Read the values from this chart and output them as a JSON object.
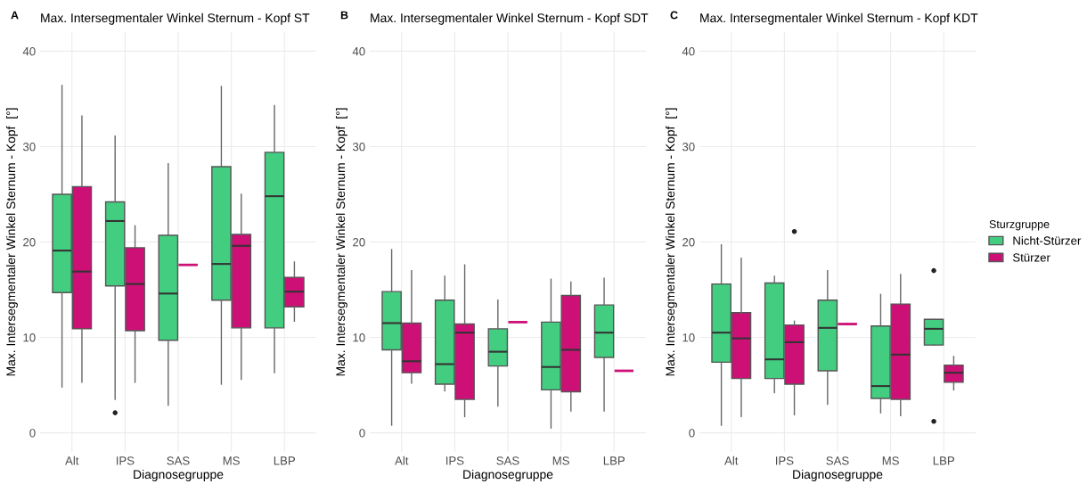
{
  "chart_data": [
    {
      "type": "box",
      "title": "Max. Intersegmentaler Winkel Sternum - Kopf ST",
      "annotations": [
        "A"
      ],
      "xlabel": "Diagnosegruppe",
      "ylabel": "Max. Intersegmentaler Winkel Sternum - Kopf  [°]",
      "categories": [
        "Alt",
        "IPS",
        "SAS",
        "MS",
        "LBP"
      ],
      "ylim": [
        -2,
        42
      ],
      "yticks": [
        0,
        10,
        20,
        30,
        40
      ],
      "grid": true,
      "legend": false,
      "series": [
        {
          "color": "#43cd80",
          "boxes": [
            {
              "low": 4.8,
              "q1": 14.7,
              "median": 19.1,
              "q3": 25.0,
              "high": 36.4
            },
            {
              "low": 3.5,
              "q1": 15.4,
              "median": 22.2,
              "q3": 24.2,
              "high": 31.1,
              "outliers": [
                2.1
              ]
            },
            {
              "low": 2.9,
              "q1": 9.7,
              "median": 14.6,
              "q3": 20.7,
              "high": 28.2
            },
            {
              "low": 5.1,
              "q1": 13.9,
              "median": 17.7,
              "q3": 27.9,
              "high": 36.3
            },
            {
              "low": 6.3,
              "q1": 11.0,
              "median": 24.8,
              "q3": 29.4,
              "high": 34.3
            }
          ]
        },
        {
          "color": "#cd1076",
          "boxes": [
            {
              "low": 5.3,
              "q1": 10.9,
              "median": 16.9,
              "q3": 25.8,
              "high": 33.2
            },
            {
              "low": 5.3,
              "q1": 10.7,
              "median": 15.6,
              "q3": 19.4,
              "high": 21.7
            },
            {
              "low": 17.6,
              "q1": 17.6,
              "median": 17.6,
              "q3": 17.6,
              "high": 17.6
            },
            {
              "low": 5.6,
              "q1": 11.0,
              "median": 19.6,
              "q3": 20.8,
              "high": 25.0
            },
            {
              "low": 11.7,
              "q1": 13.2,
              "median": 14.8,
              "q3": 16.3,
              "high": 17.9
            }
          ]
        }
      ]
    },
    {
      "type": "box",
      "title": "Max. Intersegmentaler Winkel Sternum - Kopf SDT",
      "annotations": [
        "B"
      ],
      "xlabel": "Diagnosegruppe",
      "ylabel": "Max. Intersegmentaler Winkel Sternum - Kopf  [°]",
      "categories": [
        "Alt",
        "IPS",
        "SAS",
        "MS",
        "LBP"
      ],
      "ylim": [
        -2,
        42
      ],
      "yticks": [
        0,
        10,
        20,
        30,
        40
      ],
      "grid": true,
      "legend": false,
      "series": [
        {
          "color": "#43cd80",
          "boxes": [
            {
              "low": 0.8,
              "q1": 8.7,
              "median": 11.5,
              "q3": 14.8,
              "high": 19.2
            },
            {
              "low": 4.4,
              "q1": 5.1,
              "median": 7.2,
              "q3": 13.9,
              "high": 16.4
            },
            {
              "low": 2.8,
              "q1": 7.0,
              "median": 8.5,
              "q3": 10.9,
              "high": 13.9
            },
            {
              "low": 0.5,
              "q1": 4.5,
              "median": 6.9,
              "q3": 11.6,
              "high": 16.1
            },
            {
              "low": 2.3,
              "q1": 7.9,
              "median": 10.5,
              "q3": 13.4,
              "high": 16.2
            }
          ]
        },
        {
          "color": "#cd1076",
          "boxes": [
            {
              "low": 5.2,
              "q1": 6.3,
              "median": 7.5,
              "q3": 11.5,
              "high": 17.0
            },
            {
              "low": 1.7,
              "q1": 3.5,
              "median": 10.5,
              "q3": 11.4,
              "high": 17.6
            },
            {
              "low": 11.6,
              "q1": 11.6,
              "median": 11.6,
              "q3": 11.6,
              "high": 11.6
            },
            {
              "low": 2.3,
              "q1": 4.3,
              "median": 8.7,
              "q3": 14.4,
              "high": 15.8
            },
            {
              "low": 6.5,
              "q1": 6.5,
              "median": 6.5,
              "q3": 6.5,
              "high": 6.5
            }
          ]
        }
      ]
    },
    {
      "type": "box",
      "title": "Max. Intersegmentaler Winkel Sternum - Kopf KDT",
      "annotations": [
        "C"
      ],
      "xlabel": "Diagnosegruppe",
      "ylabel": "Max. Intersegmentaler Winkel Sternum - Kopf  [°]",
      "categories": [
        "Alt",
        "IPS",
        "SAS",
        "MS",
        "LBP"
      ],
      "ylim": [
        -2,
        42
      ],
      "yticks": [
        0,
        10,
        20,
        30,
        40
      ],
      "grid": true,
      "legend": "right",
      "legend_title": "Sturzgruppe",
      "series": [
        {
          "name": "Nicht-Stürzer",
          "color": "#43cd80",
          "boxes": [
            {
              "low": 0.8,
              "q1": 7.4,
              "median": 10.5,
              "q3": 15.6,
              "high": 19.7
            },
            {
              "low": 4.2,
              "q1": 5.7,
              "median": 7.7,
              "q3": 15.7,
              "high": 16.4
            },
            {
              "low": 3.0,
              "q1": 6.5,
              "median": 11.0,
              "q3": 13.9,
              "high": 17.0
            },
            {
              "low": 2.1,
              "q1": 3.6,
              "median": 4.9,
              "q3": 11.2,
              "high": 14.5
            },
            {
              "low": 9.2,
              "q1": 9.2,
              "median": 10.9,
              "q3": 11.9,
              "high": 11.9,
              "outliers": [
                17.0,
                1.2
              ]
            }
          ]
        },
        {
          "name": "Stürzer",
          "color": "#cd1076",
          "boxes": [
            {
              "low": 1.7,
              "q1": 5.7,
              "median": 9.9,
              "q3": 12.6,
              "high": 18.3
            },
            {
              "low": 1.9,
              "q1": 5.1,
              "median": 9.5,
              "q3": 11.3,
              "high": 11.7,
              "outliers": [
                21.1
              ]
            },
            {
              "low": 11.4,
              "q1": 11.4,
              "median": 11.4,
              "q3": 11.4,
              "high": 11.4
            },
            {
              "low": 1.8,
              "q1": 3.5,
              "median": 8.2,
              "q3": 13.5,
              "high": 16.6
            },
            {
              "low": 4.5,
              "q1": 5.3,
              "median": 6.3,
              "q3": 7.1,
              "high": 8.0
            }
          ]
        }
      ]
    }
  ]
}
